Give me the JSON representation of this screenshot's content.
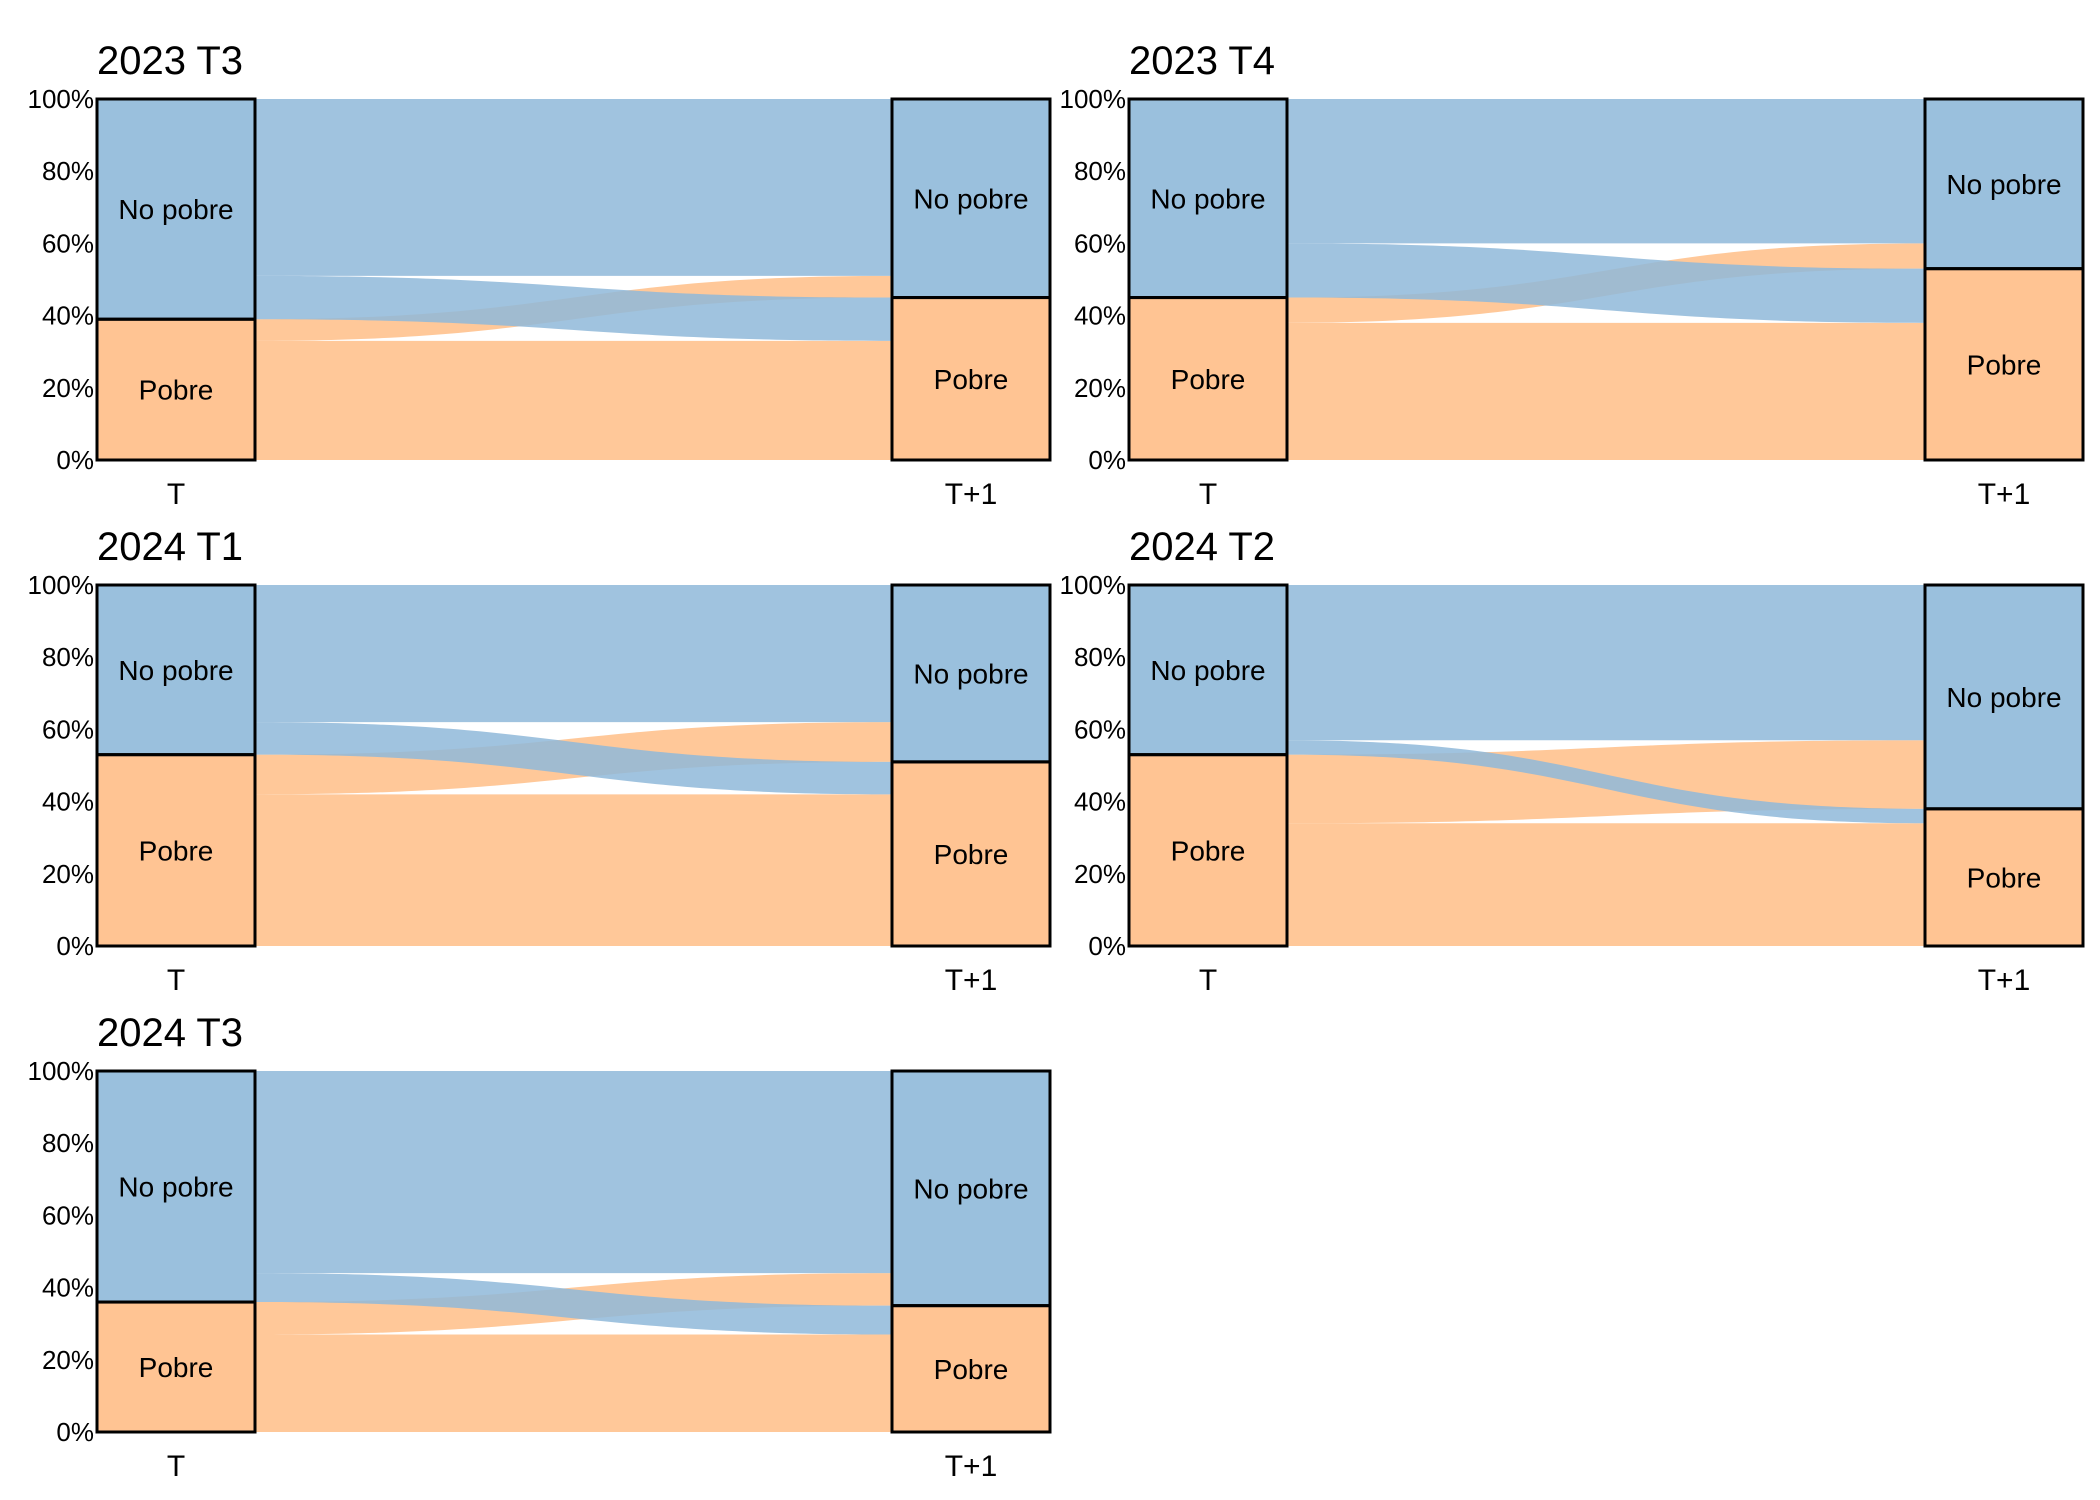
{
  "colors": {
    "no_pobre": "#8fb9d9",
    "pobre": "#ffbe87",
    "stratum_stroke": "#000000"
  },
  "chart_data": [
    {
      "type": "alluvial",
      "title": "2023 T3",
      "axes": [
        "T",
        "T+1"
      ],
      "yticks": [
        "0%",
        "20%",
        "40%",
        "60%",
        "80%",
        "100%"
      ],
      "ylim": [
        0,
        100
      ],
      "categories": [
        "No pobre",
        "Pobre"
      ],
      "strata": {
        "T": [
          {
            "name": "No pobre",
            "value": 61
          },
          {
            "name": "Pobre",
            "value": 39
          }
        ],
        "T+1": [
          {
            "name": "No pobre",
            "value": 55
          },
          {
            "name": "Pobre",
            "value": 45
          }
        ]
      },
      "flows": [
        {
          "from": "No pobre",
          "to": "No pobre",
          "value": 49
        },
        {
          "from": "No pobre",
          "to": "Pobre",
          "value": 12
        },
        {
          "from": "Pobre",
          "to": "No pobre",
          "value": 6
        },
        {
          "from": "Pobre",
          "to": "Pobre",
          "value": 33
        }
      ]
    },
    {
      "type": "alluvial",
      "title": "2023 T4",
      "axes": [
        "T",
        "T+1"
      ],
      "yticks": [
        "0%",
        "20%",
        "40%",
        "60%",
        "80%",
        "100%"
      ],
      "ylim": [
        0,
        100
      ],
      "categories": [
        "No pobre",
        "Pobre"
      ],
      "strata": {
        "T": [
          {
            "name": "No pobre",
            "value": 55
          },
          {
            "name": "Pobre",
            "value": 45
          }
        ],
        "T+1": [
          {
            "name": "No pobre",
            "value": 47
          },
          {
            "name": "Pobre",
            "value": 53
          }
        ]
      },
      "flows": [
        {
          "from": "No pobre",
          "to": "No pobre",
          "value": 40
        },
        {
          "from": "No pobre",
          "to": "Pobre",
          "value": 15
        },
        {
          "from": "Pobre",
          "to": "No pobre",
          "value": 7
        },
        {
          "from": "Pobre",
          "to": "Pobre",
          "value": 38
        }
      ]
    },
    {
      "type": "alluvial",
      "title": "2024 T1",
      "axes": [
        "T",
        "T+1"
      ],
      "yticks": [
        "0%",
        "20%",
        "40%",
        "60%",
        "80%",
        "100%"
      ],
      "ylim": [
        0,
        100
      ],
      "categories": [
        "No pobre",
        "Pobre"
      ],
      "strata": {
        "T": [
          {
            "name": "No pobre",
            "value": 47
          },
          {
            "name": "Pobre",
            "value": 53
          }
        ],
        "T+1": [
          {
            "name": "No pobre",
            "value": 49
          },
          {
            "name": "Pobre",
            "value": 51
          }
        ]
      },
      "flows": [
        {
          "from": "No pobre",
          "to": "No pobre",
          "value": 38
        },
        {
          "from": "No pobre",
          "to": "Pobre",
          "value": 9
        },
        {
          "from": "Pobre",
          "to": "No pobre",
          "value": 11
        },
        {
          "from": "Pobre",
          "to": "Pobre",
          "value": 42
        }
      ]
    },
    {
      "type": "alluvial",
      "title": "2024 T2",
      "axes": [
        "T",
        "T+1"
      ],
      "yticks": [
        "0%",
        "20%",
        "40%",
        "60%",
        "80%",
        "100%"
      ],
      "ylim": [
        0,
        100
      ],
      "categories": [
        "No pobre",
        "Pobre"
      ],
      "strata": {
        "T": [
          {
            "name": "No pobre",
            "value": 47
          },
          {
            "name": "Pobre",
            "value": 53
          }
        ],
        "T+1": [
          {
            "name": "No pobre",
            "value": 62
          },
          {
            "name": "Pobre",
            "value": 38
          }
        ]
      },
      "flows": [
        {
          "from": "No pobre",
          "to": "No pobre",
          "value": 43
        },
        {
          "from": "No pobre",
          "to": "Pobre",
          "value": 4
        },
        {
          "from": "Pobre",
          "to": "No pobre",
          "value": 19
        },
        {
          "from": "Pobre",
          "to": "Pobre",
          "value": 34
        }
      ]
    },
    {
      "type": "alluvial",
      "title": "2024 T3",
      "axes": [
        "T",
        "T+1"
      ],
      "yticks": [
        "0%",
        "20%",
        "40%",
        "60%",
        "80%",
        "100%"
      ],
      "ylim": [
        0,
        100
      ],
      "categories": [
        "No pobre",
        "Pobre"
      ],
      "strata": {
        "T": [
          {
            "name": "No pobre",
            "value": 64
          },
          {
            "name": "Pobre",
            "value": 36
          }
        ],
        "T+1": [
          {
            "name": "No pobre",
            "value": 65
          },
          {
            "name": "Pobre",
            "value": 35
          }
        ]
      },
      "flows": [
        {
          "from": "No pobre",
          "to": "No pobre",
          "value": 56
        },
        {
          "from": "No pobre",
          "to": "Pobre",
          "value": 8
        },
        {
          "from": "Pobre",
          "to": "No pobre",
          "value": 9
        },
        {
          "from": "Pobre",
          "to": "Pobre",
          "value": 27
        }
      ]
    }
  ]
}
